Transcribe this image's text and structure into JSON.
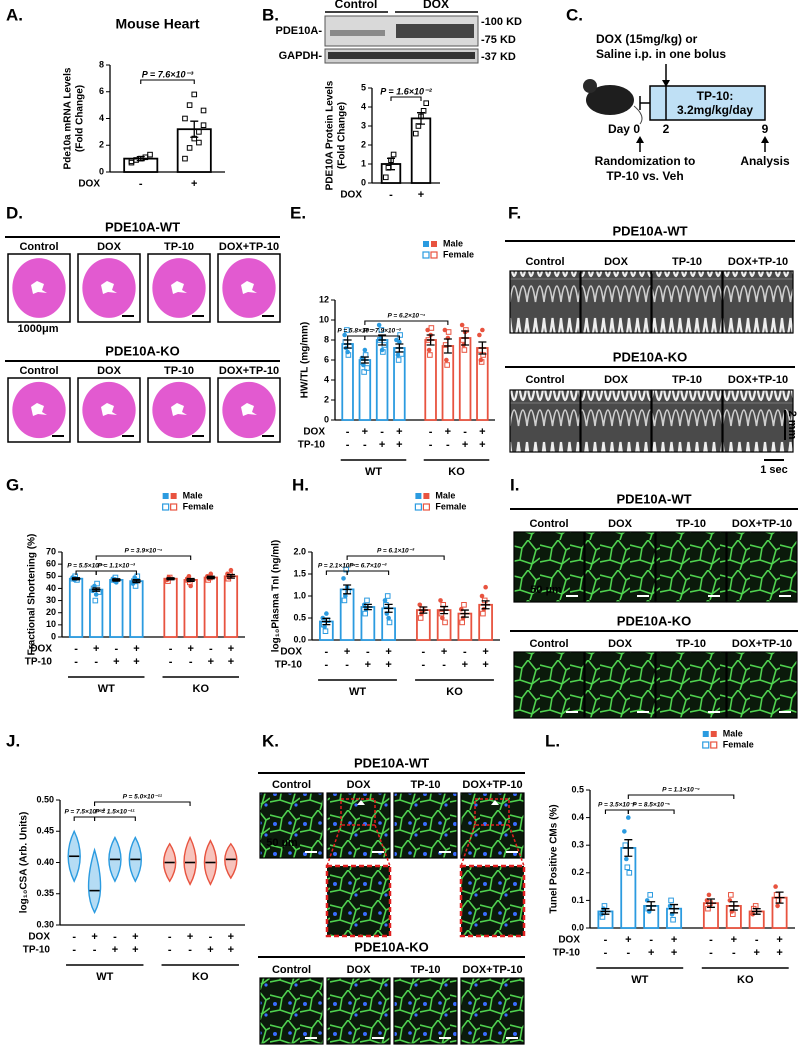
{
  "panel_labels": [
    "A.",
    "B.",
    "C.",
    "D.",
    "E.",
    "F.",
    "G.",
    "H.",
    "I.",
    "J.",
    "K.",
    "L."
  ],
  "blot": {
    "groups": [
      "Control",
      "DOX"
    ],
    "rows": [
      "PDE10A-",
      "GAPDH-"
    ],
    "markers": [
      "-100 KD",
      "-75 KD",
      "-37 KD"
    ]
  },
  "protocol": {
    "treatment": [
      "DOX (15mg/kg) or",
      "Saline i.p. in one bolus"
    ],
    "box": [
      "TP-10:",
      "3.2mg/kg/day"
    ],
    "days": [
      "Day 0",
      "2",
      "9"
    ],
    "randomization": [
      "Randomization to",
      "TP-10 vs. Veh"
    ],
    "analysis": "Analysis"
  },
  "image_panels": [
    {
      "rows": [
        {
          "title": "PDE10A-WT",
          "groups": [
            "Control",
            "DOX",
            "TP-10",
            "DOX+TP-10"
          ]
        },
        {
          "title": "PDE10A-KO",
          "groups": [
            "Control",
            "DOX",
            "TP-10",
            "DOX+TP-10"
          ]
        }
      ],
      "scale_labels": [
        "1000μm"
      ]
    },
    {
      "rows": [
        {
          "title": "PDE10A-WT",
          "groups": [
            "Control",
            "DOX",
            "TP-10",
            "DOX+TP-10"
          ]
        },
        {
          "title": "PDE10A-KO",
          "groups": [
            "Control",
            "DOX",
            "TP-10",
            "DOX+TP-10"
          ]
        }
      ],
      "scale_labels": [
        "2 mm",
        "1 sec"
      ]
    },
    {
      "rows": [
        {
          "title": "PDE10A-WT",
          "groups": [
            "Control",
            "DOX",
            "TP-10",
            "DOX+TP-10"
          ]
        },
        {
          "title": "PDE10A-KO",
          "groups": [
            "Control",
            "DOX",
            "TP-10",
            "DOX+TP-10"
          ]
        }
      ],
      "scale_labels": [
        "50 µm"
      ]
    },
    {
      "rows": [
        {
          "title": "PDE10A-WT",
          "groups": [
            "Control",
            "DOX",
            "TP-10",
            "DOX+TP-10"
          ]
        },
        {
          "title": "PDE10A-KO",
          "groups": [
            "Control",
            "DOX",
            "TP-10",
            "DOX+TP-10"
          ]
        }
      ],
      "scale_labels": [
        "50 µm"
      ]
    }
  ],
  "chart_data": [
    {
      "type": "bar",
      "title": "Mouse Heart",
      "ylabel": [
        "Pde10a mRNA Levels",
        "(Fold Change)"
      ],
      "color": "#000000",
      "values": [
        1.0,
        3.2
      ],
      "errors": [
        0.15,
        0.6
      ],
      "points": [
        [
          0.7,
          0.9,
          1.0,
          1.1,
          1.3,
          0.8
        ],
        [
          1.0,
          1.8,
          2.5,
          3.0,
          3.5,
          4.0,
          5.0,
          5.8,
          2.2,
          4.6
        ]
      ],
      "conditions": [
        {
          "name": "DOX",
          "marks": [
            "-",
            "+"
          ]
        }
      ],
      "ylim": [
        0,
        8
      ],
      "yticks": [
        0,
        2,
        4,
        6,
        8
      ],
      "annotations": [
        {
          "text": "P = 7.6×10⁻³",
          "from": 0,
          "to": 1
        }
      ]
    },
    {
      "type": "bar",
      "ylabel": [
        "PDE10A Protein Levels",
        "(Fold Change)"
      ],
      "color": "#000000",
      "values": [
        1.0,
        3.4
      ],
      "errors": [
        0.3,
        0.3
      ],
      "points": [
        [
          0.3,
          0.8,
          1.2,
          1.5
        ],
        [
          2.6,
          3.0,
          3.5,
          3.8,
          4.2
        ]
      ],
      "conditions": [
        {
          "name": "DOX",
          "marks": [
            "-",
            "+"
          ]
        }
      ],
      "ylim": [
        0,
        5
      ],
      "yticks": [
        0,
        1,
        2,
        3,
        4,
        5
      ],
      "annotations": [
        {
          "text": "P = 1.6×10⁻²",
          "from": 0,
          "to": 1
        }
      ]
    },
    {
      "type": "bar",
      "ylabel": [
        "HW/TL (mg/mm)"
      ],
      "legend": [
        "Male",
        "Female"
      ],
      "series": [
        {
          "name": "WT",
          "color": "#2b9be0",
          "values": [
            7.6,
            6.0,
            8.0,
            7.2
          ],
          "errors": [
            0.4,
            0.3,
            0.5,
            0.4
          ],
          "male": [
            [
              8.5,
              7.2,
              6.8
            ],
            [
              6.2,
              5.5,
              7.0
            ],
            [
              9.5,
              8.2,
              7.0
            ],
            [
              8.0,
              6.5,
              7.8
            ]
          ],
          "female": [
            [
              7.8,
              9.0,
              6.5,
              7.4
            ],
            [
              5.8,
              4.8,
              6.5,
              5.2
            ],
            [
              8.0,
              9.0,
              6.8,
              7.5
            ],
            [
              7.0,
              6.0,
              8.5,
              6.6
            ]
          ]
        },
        {
          "name": "KO",
          "color": "#e8533f",
          "values": [
            8.0,
            7.4,
            8.2,
            7.2
          ],
          "errors": [
            0.5,
            0.7,
            0.7,
            0.6
          ],
          "male": [
            [
              9.0,
              7.0,
              8.5
            ],
            [
              9.0,
              6.0,
              8.2
            ],
            [
              9.5,
              7.5,
              8.8
            ],
            [
              8.5,
              6.0,
              9.0
            ]
          ],
          "female": [
            [
              8.0,
              6.5,
              9.2
            ],
            [
              7.5,
              5.5,
              8.8
            ],
            [
              8.0,
              7.0,
              9.0
            ],
            [
              7.0,
              5.8,
              6.5
            ]
          ]
        }
      ],
      "conditions": [
        {
          "name": "DOX",
          "marks": [
            "-",
            "+",
            "-",
            "+",
            "-",
            "+",
            "-",
            "+"
          ]
        },
        {
          "name": "TP-10",
          "marks": [
            "-",
            "-",
            "+",
            "+",
            "-",
            "-",
            "+",
            "+"
          ]
        }
      ],
      "ylim": [
        0,
        12
      ],
      "yticks": [
        0,
        2,
        4,
        6,
        8,
        10,
        12
      ],
      "annotations": [
        {
          "text": "P = 5.8×10⁻⁵",
          "from": 0,
          "to": 1
        },
        {
          "text": "P = 7.9×10⁻³",
          "from": 1,
          "to": 3
        },
        {
          "text": "P = 6.2×10⁻⁴",
          "from": 1,
          "to": 5
        }
      ]
    },
    {
      "type": "bar",
      "ylabel": [
        "Fractional Shortening (%)"
      ],
      "legend": [
        "Male",
        "Female"
      ],
      "series": [
        {
          "name": "WT",
          "color": "#2b9be0",
          "values": [
            48,
            39,
            47,
            46
          ],
          "errors": [
            0.8,
            1.3,
            1.0,
            1.2
          ],
          "male": [
            [
              49,
              47,
              48
            ],
            [
              38,
              42,
              35
            ],
            [
              48,
              46,
              45
            ],
            [
              44,
              49,
              47
            ]
          ],
          "female": [
            [
              48,
              50,
              47
            ],
            [
              40,
              30,
              44,
              37
            ],
            [
              47,
              49
            ],
            [
              46,
              42,
              50
            ]
          ]
        },
        {
          "name": "KO",
          "color": "#e8533f",
          "values": [
            48,
            47,
            49,
            50
          ],
          "errors": [
            0.8,
            1.2,
            1.0,
            1.5
          ],
          "male": [
            [
              47,
              49
            ],
            [
              48,
              50,
              42
            ],
            [
              50,
              48,
              52
            ],
            [
              52,
              49,
              55
            ]
          ],
          "female": [
            [
              46,
              49
            ],
            [
              47,
              45
            ],
            [
              47,
              49
            ],
            [
              48,
              51
            ]
          ]
        }
      ],
      "conditions": [
        {
          "name": "DOX",
          "marks": [
            "-",
            "+",
            "-",
            "+",
            "-",
            "+",
            "-",
            "+"
          ]
        },
        {
          "name": "TP-10",
          "marks": [
            "-",
            "-",
            "+",
            "+",
            "-",
            "-",
            "+",
            "+"
          ]
        }
      ],
      "ylim": [
        0,
        70
      ],
      "yticks": [
        0,
        10,
        20,
        30,
        40,
        50,
        60,
        70
      ],
      "annotations": [
        {
          "text": "P = 5.5×10⁻⁴",
          "from": 0,
          "to": 1
        },
        {
          "text": "P = 1.1×10⁻³",
          "from": 1,
          "to": 3
        },
        {
          "text": "P = 3.9×10⁻⁴",
          "from": 1,
          "to": 5
        }
      ]
    },
    {
      "type": "bar",
      "ylabel": [
        "log₁₀Plasma TnI (ng/ml)"
      ],
      "legend": [
        "Male",
        "Female"
      ],
      "series": [
        {
          "name": "WT",
          "color": "#2b9be0",
          "values": [
            0.42,
            1.15,
            0.75,
            0.72
          ],
          "errors": [
            0.07,
            0.1,
            0.06,
            0.09
          ],
          "male": [
            [
              0.5,
              0.3,
              0.6
            ],
            [
              1.4,
              1.0,
              1.2
            ],
            [
              0.8,
              0.7
            ],
            [
              0.9,
              0.6,
              0.5
            ]
          ],
          "female": [
            [
              0.35,
              0.2,
              0.45
            ],
            [
              0.9,
              1.6,
              1.1
            ],
            [
              0.6,
              0.9
            ],
            [
              0.8,
              1.0,
              0.4
            ]
          ]
        },
        {
          "name": "KO",
          "color": "#e8533f",
          "values": [
            0.68,
            0.68,
            0.6,
            0.8
          ],
          "errors": [
            0.07,
            0.08,
            0.08,
            0.09
          ],
          "male": [
            [
              0.8,
              0.6
            ],
            [
              0.9,
              0.5
            ],
            [
              0.7,
              0.5
            ],
            [
              1.0,
              0.7,
              1.2
            ]
          ],
          "female": [
            [
              0.5,
              0.7
            ],
            [
              0.6,
              0.8,
              0.4
            ],
            [
              0.4,
              0.8
            ],
            [
              0.6,
              0.9
            ]
          ]
        }
      ],
      "conditions": [
        {
          "name": "DOX",
          "marks": [
            "-",
            "+",
            "-",
            "+",
            "-",
            "+",
            "-",
            "+"
          ]
        },
        {
          "name": "TP-10",
          "marks": [
            "-",
            "-",
            "+",
            "+",
            "-",
            "-",
            "+",
            "+"
          ]
        }
      ],
      "ylim": [
        0,
        2
      ],
      "yticks": [
        {
          "value": 0,
          "label": "0.0"
        },
        0.5,
        {
          "value": 1,
          "label": "1.0"
        },
        1.5,
        {
          "value": 2,
          "label": "2.0"
        }
      ],
      "annotations": [
        {
          "text": "P = 2.1×10⁻⁴",
          "from": 0,
          "to": 1
        },
        {
          "text": "P = 6.7×10⁻³",
          "from": 1,
          "to": 3
        },
        {
          "text": "P = 6.1×10⁻³",
          "from": 1,
          "to": 5
        }
      ]
    },
    {
      "type": "violin",
      "ylabel": [
        "log₁₀CSA (Arb. Units)"
      ],
      "series": [
        {
          "name": "WT",
          "color": "#2b9be0",
          "values": [
            0.41,
            0.355,
            0.405,
            0.405
          ],
          "mins": [
            0.37,
            0.32,
            0.37,
            0.37
          ],
          "maxs": [
            0.45,
            0.42,
            0.44,
            0.44
          ]
        },
        {
          "name": "KO",
          "color": "#e8533f",
          "values": [
            0.4,
            0.4,
            0.4,
            0.405
          ],
          "mins": [
            0.37,
            0.365,
            0.365,
            0.375
          ],
          "maxs": [
            0.43,
            0.44,
            0.435,
            0.43
          ]
        }
      ],
      "conditions": [
        {
          "name": "DOX",
          "marks": [
            "-",
            "+",
            "-",
            "+",
            "-",
            "+",
            "-",
            "+"
          ]
        },
        {
          "name": "TP-10",
          "marks": [
            "-",
            "-",
            "+",
            "+",
            "-",
            "-",
            "+",
            "+"
          ]
        }
      ],
      "ylim": [
        0.3,
        0.5
      ],
      "yticks": [
        {
          "value": 0.3,
          "label": "0.30"
        },
        0.35,
        {
          "value": 0.4,
          "label": "0.40"
        },
        0.45,
        {
          "value": 0.5,
          "label": "0.50"
        }
      ],
      "annotations": [
        {
          "text": "P = 7.5×10⁻¹⁰",
          "from": 0,
          "to": 1
        },
        {
          "text": "P = 1.5×10⁻¹¹",
          "from": 1,
          "to": 3
        },
        {
          "text": "P = 5.0×10⁻¹¹",
          "from": 1,
          "to": 5
        }
      ]
    },
    {
      "type": "bar",
      "ylabel": [
        "Tunel Positive CMs (%)"
      ],
      "legend": [
        "Male",
        "Female"
      ],
      "series": [
        {
          "name": "WT",
          "color": "#2b9be0",
          "values": [
            0.06,
            0.29,
            0.08,
            0.07
          ],
          "errors": [
            0.01,
            0.03,
            0.015,
            0.015
          ],
          "male": [
            [
              0.05,
              0.07
            ],
            [
              0.35,
              0.25,
              0.4
            ],
            [
              0.1,
              0.06
            ],
            [
              0.08,
              0.05
            ]
          ],
          "female": [
            [
              0.04,
              0.08
            ],
            [
              0.3,
              0.22,
              0.2
            ],
            [
              0.07,
              0.12
            ],
            [
              0.1,
              0.03
            ]
          ]
        },
        {
          "name": "KO",
          "color": "#e8533f",
          "values": [
            0.09,
            0.08,
            0.06,
            0.11
          ],
          "errors": [
            0.015,
            0.015,
            0.01,
            0.02
          ],
          "male": [
            [
              0.1,
              0.12
            ],
            [
              0.1,
              0.06
            ],
            [
              0.05
            ],
            [
              0.15,
              0.08
            ]
          ],
          "female": [
            [
              0.07,
              0.09
            ],
            [
              0.12,
              0.05
            ],
            [
              0.07,
              0.08
            ],
            [
              0.12,
              0.1
            ]
          ]
        }
      ],
      "conditions": [
        {
          "name": "DOX",
          "marks": [
            "-",
            "+",
            "-",
            "+",
            "-",
            "+",
            "-",
            "+"
          ]
        },
        {
          "name": "TP-10",
          "marks": [
            "-",
            "-",
            "+",
            "+",
            "-",
            "-",
            "+",
            "+"
          ]
        }
      ],
      "ylim": [
        0,
        0.5
      ],
      "yticks": [
        {
          "value": 0,
          "label": "0.0"
        },
        0.1,
        0.2,
        0.3,
        0.4,
        0.5
      ],
      "annotations": [
        {
          "text": "P = 3.5×10⁻⁵",
          "from": 0,
          "to": 1
        },
        {
          "text": "P = 8.5×10⁻⁵",
          "from": 1,
          "to": 3
        },
        {
          "text": "P = 1.1×10⁻⁴",
          "from": 1,
          "to": 5
        }
      ]
    }
  ]
}
